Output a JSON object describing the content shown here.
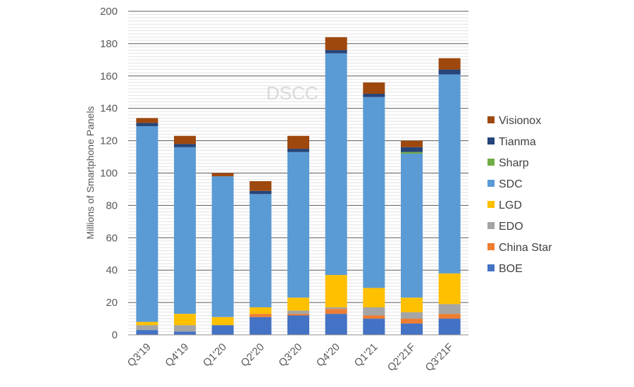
{
  "watermark": "DSCC",
  "chart_data": {
    "type": "bar",
    "stacked": true,
    "title": "",
    "xlabel": "",
    "ylabel": "Millions of Smartphone Panels",
    "ylim": [
      0,
      200
    ],
    "yticks": [
      0,
      20,
      40,
      60,
      80,
      100,
      120,
      140,
      160,
      180,
      200
    ],
    "grid": true,
    "legend_position": "right",
    "categories": [
      "Q3'19",
      "Q4'19",
      "Q1'20",
      "Q2'20",
      "Q3'20",
      "Q4'20",
      "Q1'21",
      "Q2'21F",
      "Q3'21F"
    ],
    "series": [
      {
        "name": "BOE",
        "color": "#4472C4",
        "values": [
          3,
          2,
          6,
          11,
          12,
          13,
          10,
          7,
          10
        ]
      },
      {
        "name": "China Star",
        "color": "#ED7D31",
        "values": [
          0,
          0,
          0,
          2,
          1,
          3,
          2,
          3,
          3
        ]
      },
      {
        "name": "EDO",
        "color": "#A5A5A5",
        "values": [
          3,
          4,
          0,
          0,
          2,
          1,
          5,
          4,
          6
        ]
      },
      {
        "name": "LGD",
        "color": "#FFC000",
        "values": [
          2,
          7,
          5,
          4,
          8,
          20,
          12,
          9,
          19
        ]
      },
      {
        "name": "SDC",
        "color": "#5B9BD5",
        "values": [
          121,
          103,
          87,
          70,
          90,
          137,
          118,
          89,
          123
        ]
      },
      {
        "name": "Sharp",
        "color": "#70AD47",
        "values": [
          0,
          0,
          0,
          0,
          0,
          0,
          0,
          1,
          0
        ]
      },
      {
        "name": "Tianma",
        "color": "#264478",
        "values": [
          2,
          2,
          0,
          2,
          2,
          2,
          2,
          3,
          3
        ]
      },
      {
        "name": "Visionox",
        "color": "#9E480E",
        "values": [
          3,
          5,
          2,
          6,
          8,
          8,
          7,
          4,
          7
        ]
      }
    ]
  }
}
